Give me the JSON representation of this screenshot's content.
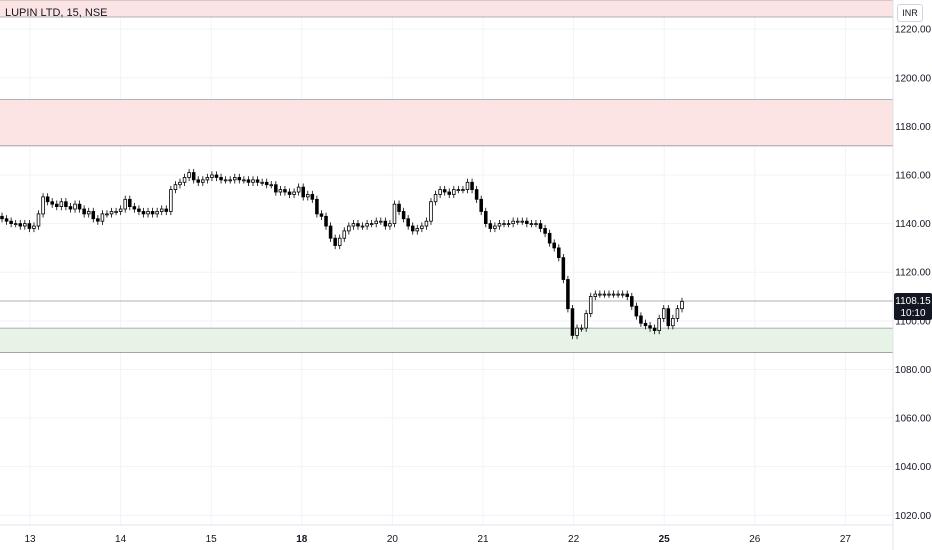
{
  "chart_data": {
    "type": "candlestick",
    "title": "LUPIN LTD, 15, NSE",
    "currency": "INR",
    "ylim": [
      1016,
      1232
    ],
    "y_ticks": [
      "1220.00",
      "1200.00",
      "1180.00",
      "1160.00",
      "1140.00",
      "1120.00",
      "1100.00",
      "1080.00",
      "1060.00",
      "1040.00",
      "1020.00"
    ],
    "x_ticks": [
      {
        "label": "13",
        "bold": false
      },
      {
        "label": "14",
        "bold": false
      },
      {
        "label": "15",
        "bold": false
      },
      {
        "label": "18",
        "bold": true
      },
      {
        "label": "20",
        "bold": false
      },
      {
        "label": "21",
        "bold": false
      },
      {
        "label": "22",
        "bold": false
      },
      {
        "label": "25",
        "bold": true
      },
      {
        "label": "26",
        "bold": false
      },
      {
        "label": "27",
        "bold": false
      }
    ],
    "zones": [
      {
        "name": "resistance-top",
        "from": 1225,
        "to": 1232,
        "color": "#fde4e4"
      },
      {
        "name": "resistance-mid",
        "from": 1172,
        "to": 1191,
        "color": "#fde4e4"
      },
      {
        "name": "support",
        "from": 1087,
        "to": 1097,
        "color": "#e6f3e6"
      }
    ],
    "last_price": "1108.15",
    "last_time": "10:10",
    "last_price_value": 1108.15,
    "closes": [
      1142,
      1141,
      1140,
      1140,
      1139,
      1140,
      1138,
      1139,
      1144,
      1151,
      1149,
      1148,
      1147,
      1149,
      1147,
      1146,
      1148,
      1146,
      1144,
      1145,
      1142,
      1141,
      1144,
      1144,
      1145,
      1145,
      1146,
      1150,
      1147,
      1146,
      1145,
      1144,
      1145,
      1144,
      1145,
      1146,
      1145,
      1154,
      1156,
      1157,
      1159,
      1161,
      1158,
      1157,
      1158,
      1159,
      1160,
      1159,
      1158,
      1158,
      1158,
      1159,
      1158,
      1158,
      1157,
      1158,
      1157,
      1157,
      1156,
      1156,
      1153,
      1154,
      1153,
      1152,
      1153,
      1155,
      1151,
      1152,
      1150,
      1144,
      1143,
      1139,
      1134,
      1131,
      1134,
      1137,
      1139,
      1140,
      1139,
      1139,
      1140,
      1140,
      1141,
      1141,
      1139,
      1140,
      1148,
      1145,
      1142,
      1139,
      1137,
      1138,
      1139,
      1141,
      1149,
      1152,
      1154,
      1153,
      1152,
      1154,
      1154,
      1154,
      1157,
      1154,
      1150,
      1145,
      1140,
      1138,
      1139,
      1140,
      1140,
      1140,
      1141,
      1141,
      1141,
      1140,
      1140,
      1140,
      1138,
      1136,
      1132,
      1130,
      1126,
      1117,
      1105,
      1094,
      1097,
      1097,
      1103,
      1110,
      1111,
      1111,
      1111,
      1111,
      1111,
      1111,
      1111,
      1110,
      1106,
      1102,
      1099,
      1098,
      1097,
      1096,
      1101,
      1105,
      1098,
      1101,
      1105,
      1108
    ]
  }
}
